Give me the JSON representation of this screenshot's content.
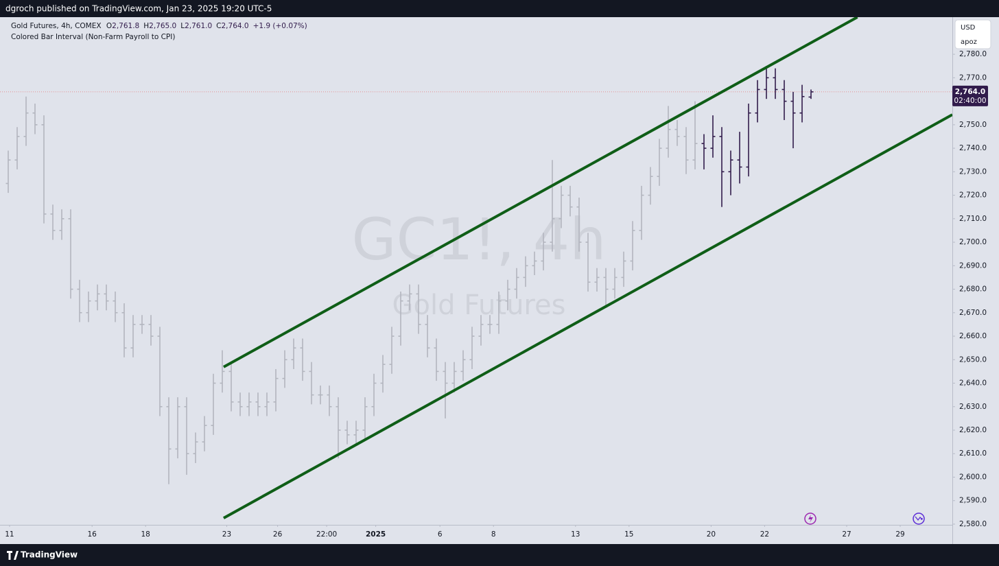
{
  "header": "dgroch published on TradingView.com, Jan 23, 2025 19:20 UTC-5",
  "footer": "TradingView",
  "currency": "USD",
  "scale_label": "apoz",
  "chart_data": {
    "type": "ohlc",
    "symbol_line": "Gold Futures, 4h, COMEX",
    "ohlc_legend": [
      {
        "key": "O",
        "text": "2,761.8"
      },
      {
        "key": "H",
        "text": "2,765.0"
      },
      {
        "key": "L",
        "text": "2,761.0"
      },
      {
        "key": "C",
        "text": "2,764.0"
      }
    ],
    "change": "+1.9 (+0.07%)",
    "indicator": "Colored Bar Interval (Non-Farm Payroll to CPI)",
    "watermark": "GC1!, 4h",
    "watermark_sub": "Gold Futures",
    "xlim": [
      -0.923,
      105.846
    ],
    "ylim": [
      2579.7,
      2795.8
    ],
    "yticks": [
      {
        "value": 2580,
        "label": "2,580.0"
      },
      {
        "value": 2590,
        "label": "2,590.0"
      },
      {
        "value": 2600,
        "label": "2,600.0"
      },
      {
        "value": 2610,
        "label": "2,610.0"
      },
      {
        "value": 2620,
        "label": "2,620.0"
      },
      {
        "value": 2630,
        "label": "2,630.0"
      },
      {
        "value": 2640,
        "label": "2,640.0"
      },
      {
        "value": 2650,
        "label": "2,650.0"
      },
      {
        "value": 2660,
        "label": "2,660.0"
      },
      {
        "value": 2670,
        "label": "2,670.0"
      },
      {
        "value": 2680,
        "label": "2,680.0"
      },
      {
        "value": 2690,
        "label": "2,690.0"
      },
      {
        "value": 2700,
        "label": "2,700.0"
      },
      {
        "value": 2710,
        "label": "2,710.0"
      },
      {
        "value": 2720,
        "label": "2,720.0"
      },
      {
        "value": 2730,
        "label": "2,730.0"
      },
      {
        "value": 2740,
        "label": "2,740.0"
      },
      {
        "value": 2750,
        "label": "2,750.0"
      },
      {
        "value": 2760,
        "label": "2,760.0"
      },
      {
        "value": 2770,
        "label": "2,770.0"
      },
      {
        "value": 2780,
        "label": "2,780.0"
      }
    ],
    "xticks": [
      {
        "value": 0.15,
        "label": "11"
      },
      {
        "value": 9.4,
        "label": "16"
      },
      {
        "value": 15.4,
        "label": "18"
      },
      {
        "value": 24.5,
        "label": "23"
      },
      {
        "value": 30.2,
        "label": "26"
      },
      {
        "value": 35.7,
        "label": "22:00"
      },
      {
        "value": 41.2,
        "label": "2025",
        "bold": true
      },
      {
        "value": 48.4,
        "label": "6"
      },
      {
        "value": 54.4,
        "label": "8"
      },
      {
        "value": 63.6,
        "label": "13"
      },
      {
        "value": 69.6,
        "label": "15"
      },
      {
        "value": 78.8,
        "label": "20"
      },
      {
        "value": 84.8,
        "label": "22"
      },
      {
        "value": 94,
        "label": "27"
      },
      {
        "value": 100,
        "label": "29"
      }
    ],
    "series": [
      {
        "color": "#b2b5be",
        "x": [
          0,
          1,
          2,
          3,
          4,
          5,
          6,
          7,
          8,
          9,
          10,
          11,
          12,
          13,
          14,
          15,
          16,
          17,
          18,
          19,
          20,
          21,
          22,
          23,
          24,
          25,
          26,
          27,
          28,
          29,
          30,
          31,
          32,
          33,
          34,
          35,
          36,
          37,
          38,
          39,
          40,
          41,
          42,
          43,
          44,
          45,
          46,
          47,
          48,
          49,
          50,
          51,
          52,
          53,
          54,
          55,
          56,
          57,
          58,
          59,
          60,
          61,
          62,
          63,
          64,
          65,
          66,
          67,
          68,
          69,
          70,
          71,
          72,
          73,
          74,
          75,
          76,
          77
        ],
        "open": [
          2725,
          2735,
          2745,
          2755,
          2750,
          2712,
          2705,
          2710,
          2680,
          2670,
          2675,
          2678,
          2675,
          2670,
          2655,
          2665,
          2665,
          2660,
          2630,
          2612,
          2630,
          2610,
          2615,
          2622,
          2640,
          2645,
          2632,
          2630,
          2632,
          2630,
          2632,
          2642,
          2650,
          2655,
          2645,
          2635,
          2635,
          2630,
          2620,
          2618,
          2620,
          2630,
          2640,
          2648,
          2660,
          2675,
          2678,
          2665,
          2655,
          2645,
          2640,
          2645,
          2650,
          2660,
          2665,
          2665,
          2675,
          2680,
          2685,
          2690,
          2692,
          2700,
          2710,
          2720,
          2715,
          2700,
          2683,
          2685,
          2680,
          2685,
          2692,
          2705,
          2720,
          2728,
          2740,
          2748,
          2745,
          2735
        ],
        "high": [
          2739,
          2749,
          2762,
          2759,
          2754,
          2716,
          2714,
          2714,
          2684,
          2679,
          2682,
          2682,
          2679,
          2674,
          2669,
          2669,
          2669,
          2664,
          2634,
          2634,
          2634,
          2619,
          2626,
          2644,
          2654,
          2649,
          2636,
          2636,
          2636,
          2636,
          2646,
          2654,
          2659,
          2659,
          2649,
          2639,
          2639,
          2634,
          2624,
          2624,
          2634,
          2644,
          2652,
          2664,
          2679,
          2682,
          2682,
          2669,
          2659,
          2649,
          2649,
          2654,
          2664,
          2669,
          2669,
          2679,
          2684,
          2689,
          2694,
          2696,
          2704,
          2735,
          2724,
          2724,
          2719,
          2704,
          2689,
          2689,
          2689,
          2696,
          2709,
          2724,
          2732,
          2744,
          2758,
          2752,
          2749,
          2760
        ],
        "low": [
          2721,
          2731,
          2741,
          2746,
          2708,
          2701,
          2701,
          2676,
          2666,
          2666,
          2671,
          2671,
          2666,
          2651,
          2651,
          2661,
          2656,
          2626,
          2597,
          2608,
          2601,
          2606,
          2611,
          2618,
          2636,
          2628,
          2626,
          2626,
          2626,
          2626,
          2628,
          2638,
          2646,
          2641,
          2631,
          2631,
          2626,
          2608,
          2614,
          2614,
          2616,
          2626,
          2636,
          2644,
          2656,
          2671,
          2661,
          2651,
          2641,
          2625,
          2636,
          2641,
          2646,
          2656,
          2661,
          2661,
          2671,
          2676,
          2681,
          2686,
          2688,
          2696,
          2706,
          2711,
          2696,
          2679,
          2679,
          2672,
          2676,
          2681,
          2688,
          2701,
          2716,
          2724,
          2736,
          2741,
          2729,
          2731
        ],
        "close": [
          2735,
          2745,
          2755,
          2750,
          2712,
          2705,
          2710,
          2680,
          2670,
          2675,
          2678,
          2675,
          2670,
          2655,
          2665,
          2665,
          2660,
          2630,
          2612,
          2630,
          2610,
          2615,
          2622,
          2640,
          2645,
          2632,
          2630,
          2632,
          2630,
          2632,
          2642,
          2650,
          2655,
          2645,
          2635,
          2635,
          2630,
          2620,
          2618,
          2620,
          2630,
          2640,
          2648,
          2660,
          2675,
          2678,
          2665,
          2655,
          2645,
          2640,
          2645,
          2650,
          2660,
          2665,
          2665,
          2675,
          2680,
          2685,
          2690,
          2692,
          2700,
          2710,
          2720,
          2715,
          2700,
          2683,
          2685,
          2680,
          2685,
          2692,
          2705,
          2720,
          2728,
          2740,
          2748,
          2745,
          2735,
          2742
        ]
      },
      {
        "color": "#311b4b",
        "x": [
          78,
          79,
          80,
          81,
          82,
          83,
          84,
          85,
          86,
          87,
          88,
          89,
          90
        ],
        "open": [
          2742,
          2740,
          2745,
          2730,
          2735,
          2732,
          2755,
          2765,
          2770,
          2765,
          2760,
          2755,
          2761.8
        ],
        "high": [
          2746,
          2754,
          2749,
          2739,
          2747,
          2759,
          2769,
          2775,
          2774,
          2769,
          2764,
          2767,
          2765
        ],
        "low": [
          2731,
          2736,
          2715,
          2720,
          2725,
          2728,
          2751,
          2761,
          2761,
          2752,
          2740,
          2751,
          2761
        ],
        "close": [
          2740,
          2745,
          2730,
          2735,
          2732,
          2755,
          2765,
          2770,
          2765,
          2760,
          2755,
          2762,
          2764
        ]
      }
    ],
    "channel": {
      "color": "#0f5e17",
      "upper": {
        "x": [
          24.15,
          95.2
        ],
        "y": [
          2646.9,
          2795.8
        ]
      },
      "lower": {
        "x": [
          24.15,
          105.846
        ],
        "y": [
          2582.6,
          2754.3
        ]
      }
    },
    "last_price": {
      "value": 2764,
      "label": "2,764.0",
      "countdown": "02:40:00",
      "color": "#311b4b"
    }
  }
}
